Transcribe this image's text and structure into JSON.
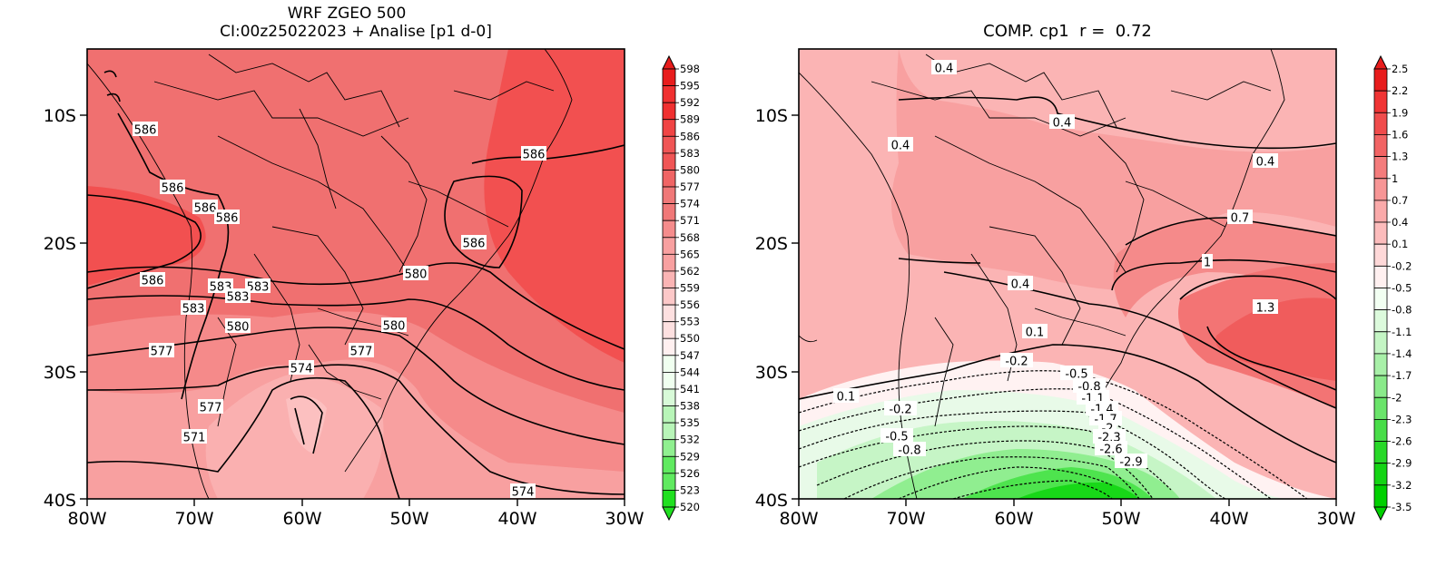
{
  "left_panel": {
    "title_line1": "WRF ZGEO 500",
    "title_line2": "CI:00z25022023 + Analise  [p1 d-0]",
    "lat_labels": [
      "10S",
      "20S",
      "30S",
      "40S"
    ],
    "lon_labels": [
      "80W",
      "70W",
      "60W",
      "50W",
      "40W",
      "30W"
    ],
    "colorbar_labels": [
      "598",
      "595",
      "592",
      "589",
      "586",
      "583",
      "580",
      "577",
      "574",
      "571",
      "568",
      "565",
      "562",
      "559",
      "556",
      "553",
      "550",
      "547",
      "544",
      "541",
      "538",
      "535",
      "532",
      "529",
      "526",
      "523",
      "520"
    ],
    "contour_labels": [
      "586",
      "586",
      "586",
      "586",
      "586",
      "586",
      "586",
      "583",
      "583",
      "583",
      "583",
      "580",
      "580",
      "580",
      "577",
      "577",
      "577",
      "574",
      "574",
      "571"
    ]
  },
  "right_panel": {
    "title": "COMP. cp1  r =  0.72",
    "lat_labels": [
      "10S",
      "20S",
      "30S",
      "40S"
    ],
    "lon_labels": [
      "80W",
      "70W",
      "60W",
      "50W",
      "40W",
      "30W"
    ],
    "colorbar_labels": [
      "2.5",
      "2.2",
      "1.9",
      "1.6",
      "1.3",
      "1",
      "0.7",
      "0.4",
      "0.1",
      "-0.2",
      "-0.5",
      "-0.8",
      "-1.1",
      "-1.4",
      "-1.7",
      "-2",
      "-2.3",
      "-2.6",
      "-2.9",
      "-3.2",
      "-3.5"
    ],
    "contour_labels": [
      "0.4",
      "0.4",
      "0.4",
      "0.4",
      "0.7",
      "1",
      "1.3",
      "0.4",
      "0.1",
      "0.1",
      "-0.2",
      "-0.2",
      "-0.5",
      "-0.5",
      "-0.8",
      "-0.8",
      "-1.1",
      "-1.4",
      "-1.7",
      "-2",
      "-2.3",
      "-2.6",
      "-2.9"
    ]
  },
  "colors": {
    "left_ramp": [
      "#e81c1c",
      "#f03030",
      "#f04444",
      "#f05555",
      "#f06565",
      "#f07878",
      "#f58c8c",
      "#f8a0a0",
      "#fab4b4",
      "#fcc8c8",
      "#fde0e0",
      "#fff0f0",
      "#f0fff0",
      "#d8fad8",
      "#b8f5b8",
      "#90f090",
      "#60ea60",
      "#20e020"
    ],
    "right_ramp": [
      "#e81c1c",
      "#f03434",
      "#f04c4c",
      "#f26464",
      "#f47c7c",
      "#f79696",
      "#faaaaa",
      "#fcbcbc",
      "#fed8d8",
      "#fff0f0",
      "#f2fff2",
      "#dcfadc",
      "#c4f5c4",
      "#a8f0a8",
      "#8aea8a",
      "#6ae46a",
      "#48dd48",
      "#28d828",
      "#14d414",
      "#00d000"
    ]
  }
}
